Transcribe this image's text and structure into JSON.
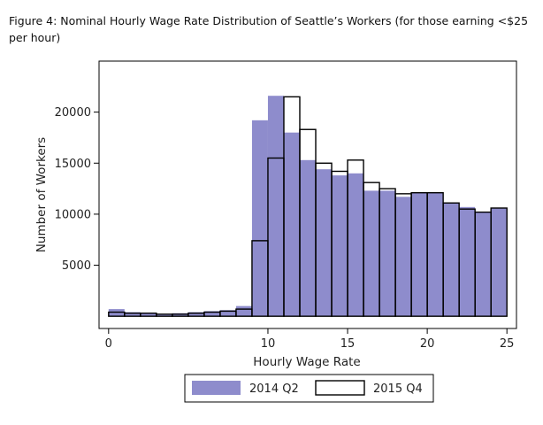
{
  "figure": {
    "title": "Figure 4: Nominal Hourly Wage Rate Distribution of Seattle’s Workers (for those earning <$25 per hour)"
  },
  "chart_data": {
    "type": "bar",
    "subtype": "histogram",
    "xlabel": "Hourly Wage Rate",
    "ylabel": "Number of Workers",
    "xlim": [
      -0.6,
      25.6
    ],
    "ylim": [
      -1200,
      25000
    ],
    "bin_width": 1,
    "x_ticks": [
      0,
      10,
      15,
      20,
      25
    ],
    "y_ticks": [
      5000,
      10000,
      15000,
      20000
    ],
    "grid": false,
    "legend_position": "bottom",
    "bins": [
      0,
      1,
      2,
      3,
      4,
      5,
      6,
      7,
      8,
      9,
      10,
      11,
      12,
      13,
      14,
      15,
      16,
      17,
      18,
      19,
      20,
      21,
      22,
      23,
      24
    ],
    "series": [
      {
        "name": "2014 Q2",
        "style": "filled",
        "color": "#8e8ccc",
        "values": [
          700,
          400,
          300,
          200,
          300,
          400,
          500,
          600,
          1000,
          19200,
          21600,
          18000,
          15300,
          14400,
          13800,
          14000,
          12300,
          12300,
          11700,
          12100,
          12100,
          11100,
          10700,
          10200,
          10600
        ]
      },
      {
        "name": "2015 Q4",
        "style": "outline",
        "color": "#000000",
        "values": [
          400,
          300,
          300,
          200,
          200,
          300,
          400,
          500,
          700,
          7400,
          15500,
          21500,
          18300,
          15000,
          14200,
          15300,
          13100,
          12500,
          12000,
          12100,
          12100,
          11100,
          10500,
          10200,
          10600
        ]
      }
    ]
  }
}
